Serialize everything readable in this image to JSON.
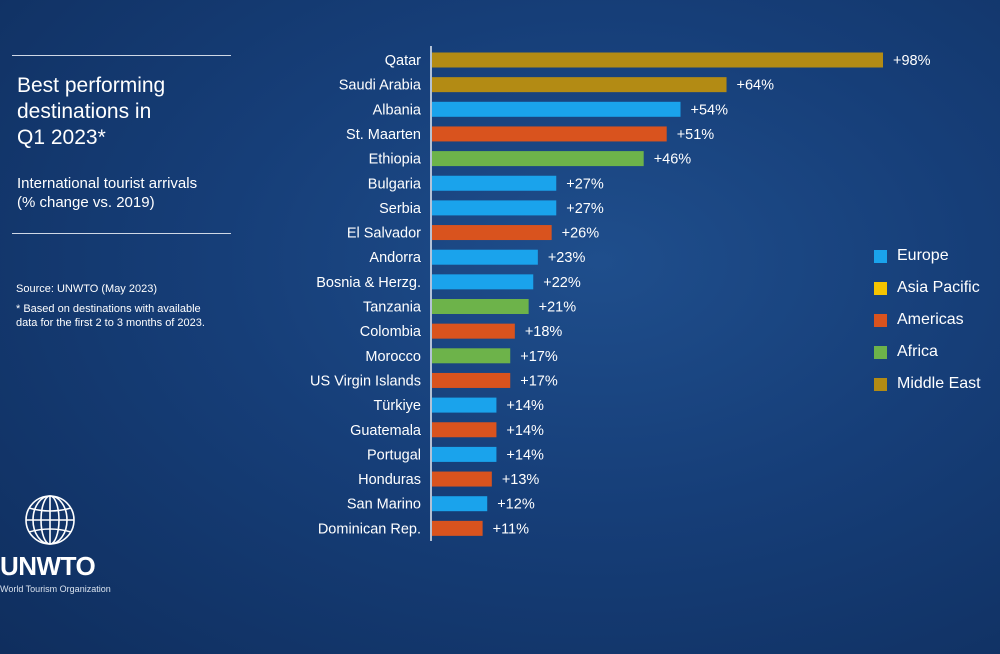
{
  "panel": {
    "title_line1": "Best performing",
    "title_line2": "destinations in",
    "title_line3": "Q1 2023*",
    "subtitle_line1": "International tourist arrivals",
    "subtitle_line2": "(% change vs. 2019)",
    "source": "Source: UNWTO (May 2023)",
    "note": "*  Based on destinations with available data for the first 2 to 3 months of 2023."
  },
  "logo": {
    "name": "UNWTO",
    "subtitle": "World Tourism Organization"
  },
  "colors": {
    "Europe": "#1aa3ec",
    "Asia Pacific": "#f5c400",
    "Americas": "#d9531e",
    "Africa": "#6db34a",
    "Middle East": "#b38b14"
  },
  "legend": [
    "Europe",
    "Asia Pacific",
    "Americas",
    "Africa",
    "Middle East"
  ],
  "chart_data": {
    "type": "bar",
    "orientation": "horizontal",
    "title": "Best performing destinations in Q1 2023*",
    "ylabel": "International tourist arrivals (% change vs. 2019)",
    "xlim": [
      0,
      100
    ],
    "grid": false,
    "legend_position": "right",
    "categories": [
      "Qatar",
      "Saudi Arabia",
      "Albania",
      "St. Maarten",
      "Ethiopia",
      "Bulgaria",
      "Serbia",
      "El Salvador",
      "Andorra",
      "Bosnia & Herzg.",
      "Tanzania",
      "Colombia",
      "Morocco",
      "US Virgin Islands",
      "Türkiye",
      "Guatemala",
      "Portugal",
      "Honduras",
      "San Marino",
      "Dominican Rep."
    ],
    "values": [
      98,
      64,
      54,
      51,
      46,
      27,
      27,
      26,
      23,
      22,
      21,
      18,
      17,
      17,
      14,
      14,
      14,
      13,
      12,
      11
    ],
    "labels": [
      "+98%",
      "+64%",
      "+54%",
      "+51%",
      "+46%",
      "+27%",
      "+27%",
      "+26%",
      "+23%",
      "+22%",
      "+21%",
      "+18%",
      "+17%",
      "+17%",
      "+14%",
      "+14%",
      "+14%",
      "+13%",
      "+12%",
      "+11%"
    ],
    "regions": [
      "Middle East",
      "Middle East",
      "Europe",
      "Americas",
      "Africa",
      "Europe",
      "Europe",
      "Americas",
      "Europe",
      "Europe",
      "Africa",
      "Americas",
      "Africa",
      "Americas",
      "Europe",
      "Americas",
      "Europe",
      "Americas",
      "Europe",
      "Americas"
    ]
  }
}
